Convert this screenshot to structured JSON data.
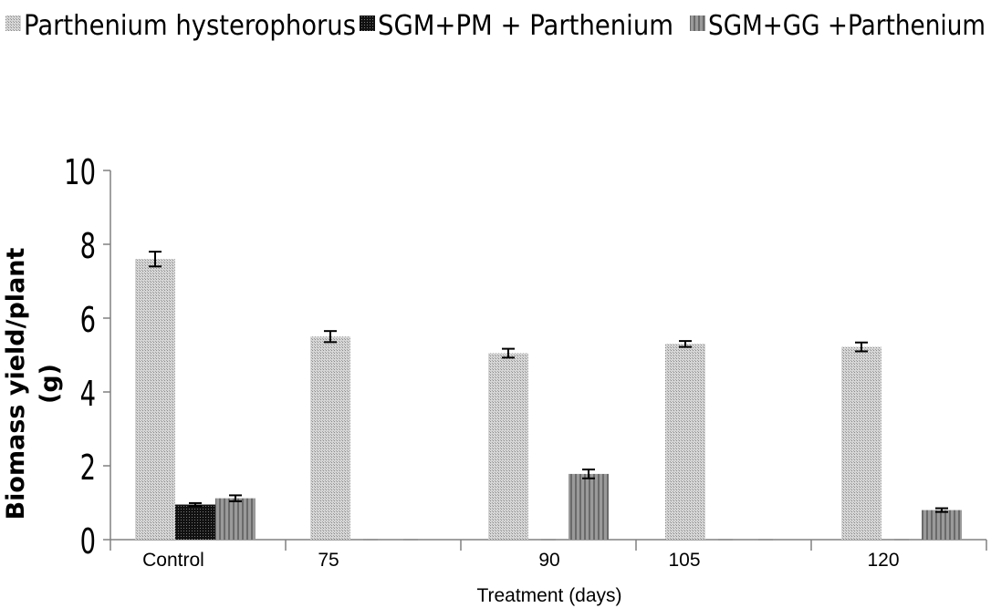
{
  "chart_data": {
    "type": "bar",
    "categories": [
      "Control",
      "75",
      "90",
      "105",
      "120"
    ],
    "series": [
      {
        "name": "Parthenium hysterophorus",
        "values": [
          7.6,
          5.5,
          5.05,
          5.3,
          5.22
        ],
        "errors": [
          0.2,
          0.15,
          0.12,
          0.08,
          0.12
        ],
        "color": "#c8c8c8"
      },
      {
        "name": "SGM+PM + Parthenium",
        "values": [
          0.95,
          0,
          0,
          0,
          0
        ],
        "errors": [
          0.04,
          0,
          0,
          0,
          0
        ],
        "color": "#2a2a2a"
      },
      {
        "name": "SGM+GG +Parthenium",
        "values": [
          1.12,
          0,
          1.78,
          0,
          0.8
        ],
        "errors": [
          0.08,
          0,
          0.12,
          0,
          0.05
        ],
        "color": "#8c8c8c"
      }
    ],
    "title": "",
    "xlabel": "Treatment (days)",
    "ylabel": "Biomass yield/plant (g)",
    "ylim": [
      0,
      10
    ],
    "yticks": [
      0,
      2,
      4,
      6,
      8,
      10
    ],
    "grid": false,
    "legend_position": "top"
  }
}
